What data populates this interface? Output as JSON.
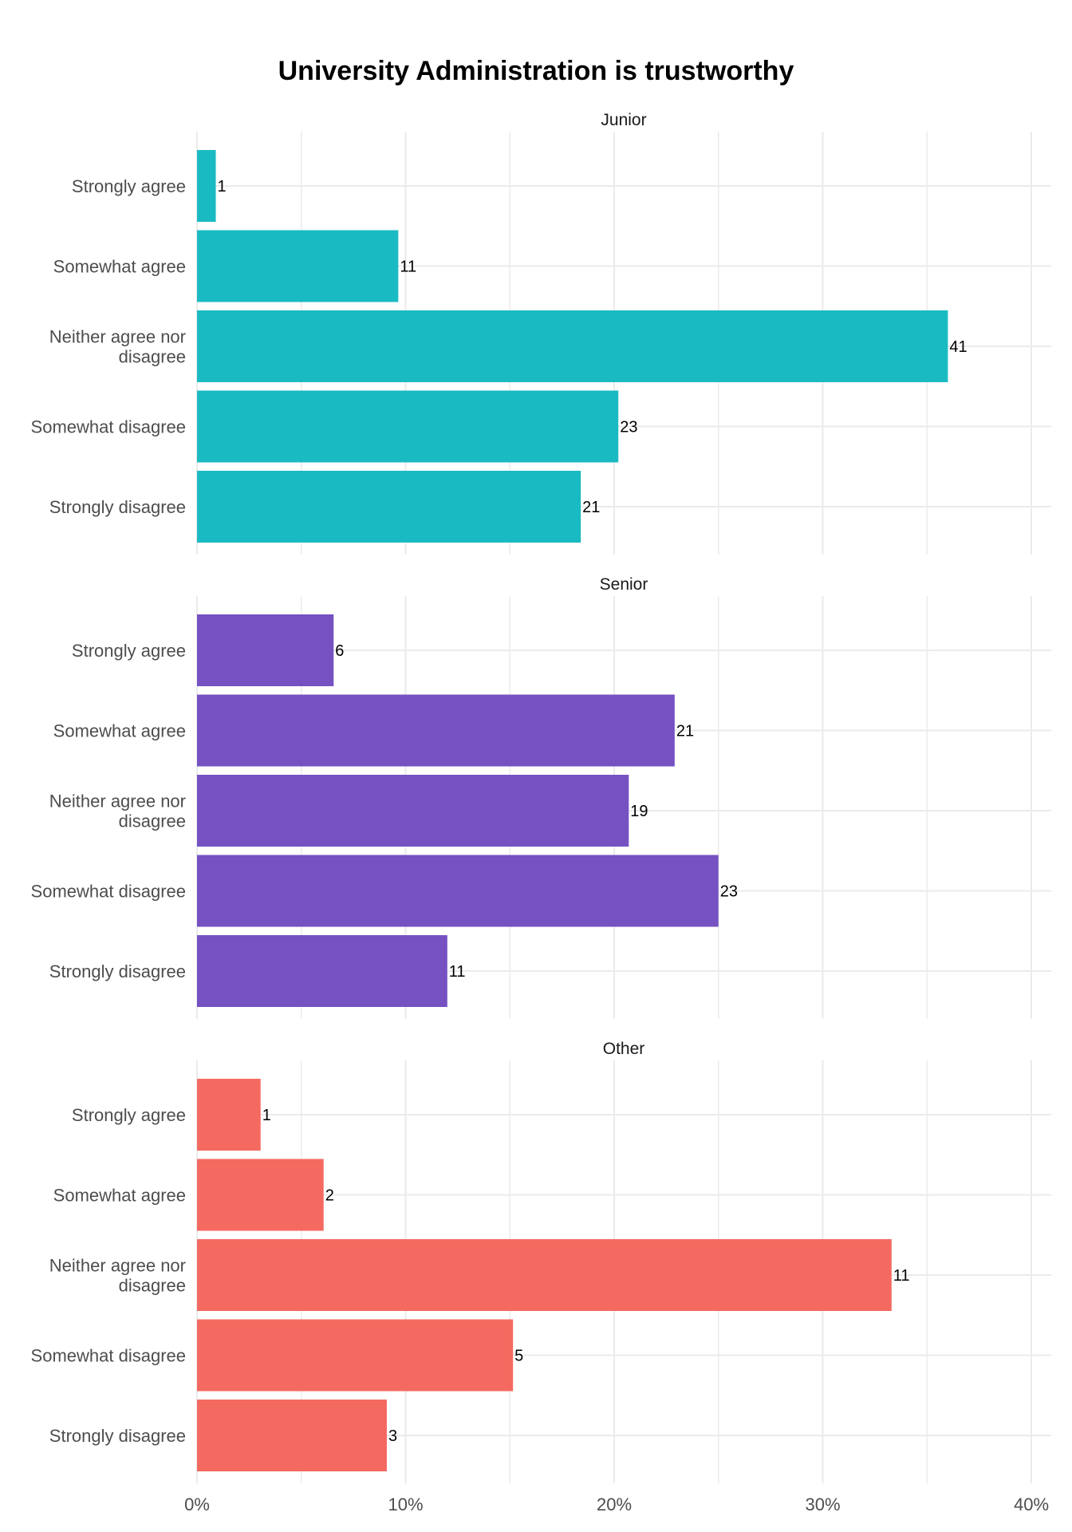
{
  "chart_data": {
    "type": "bar",
    "orientation": "horizontal",
    "title": "University Administration is trustworthy",
    "xlabel": "",
    "ylabel": "",
    "xlim": [
      0,
      0.41
    ],
    "x_ticks": [
      "0%",
      "10%",
      "20%",
      "30%",
      "40%"
    ],
    "grid": true,
    "categories": [
      "Strongly agree",
      "Somewhat agree",
      "Neither agree nor disagree",
      "Somewhat disagree",
      "Strongly disagree"
    ],
    "category_lines": [
      [
        "Strongly agree"
      ],
      [
        "Somewhat agree"
      ],
      [
        "Neither agree nor",
        "disagree"
      ],
      [
        "Somewhat disagree"
      ],
      [
        "Strongly disagree"
      ]
    ],
    "facets": [
      {
        "name": "Junior",
        "color": "#1ABAC2",
        "proportions": [
          0.009,
          0.0965,
          0.36,
          0.202,
          0.184
        ],
        "counts": [
          "1",
          "11",
          "41",
          "23",
          "21"
        ]
      },
      {
        "name": "Senior",
        "color": "#7551C2",
        "proportions": [
          0.0655,
          0.229,
          0.207,
          0.25,
          0.12
        ],
        "counts": [
          "6",
          "21",
          "19",
          "23",
          "11"
        ]
      },
      {
        "name": "Other",
        "color": "#F46A60",
        "proportions": [
          0.0305,
          0.0607,
          0.333,
          0.1515,
          0.091
        ],
        "counts": [
          "1",
          "2",
          "11",
          "5",
          "3"
        ]
      }
    ]
  }
}
